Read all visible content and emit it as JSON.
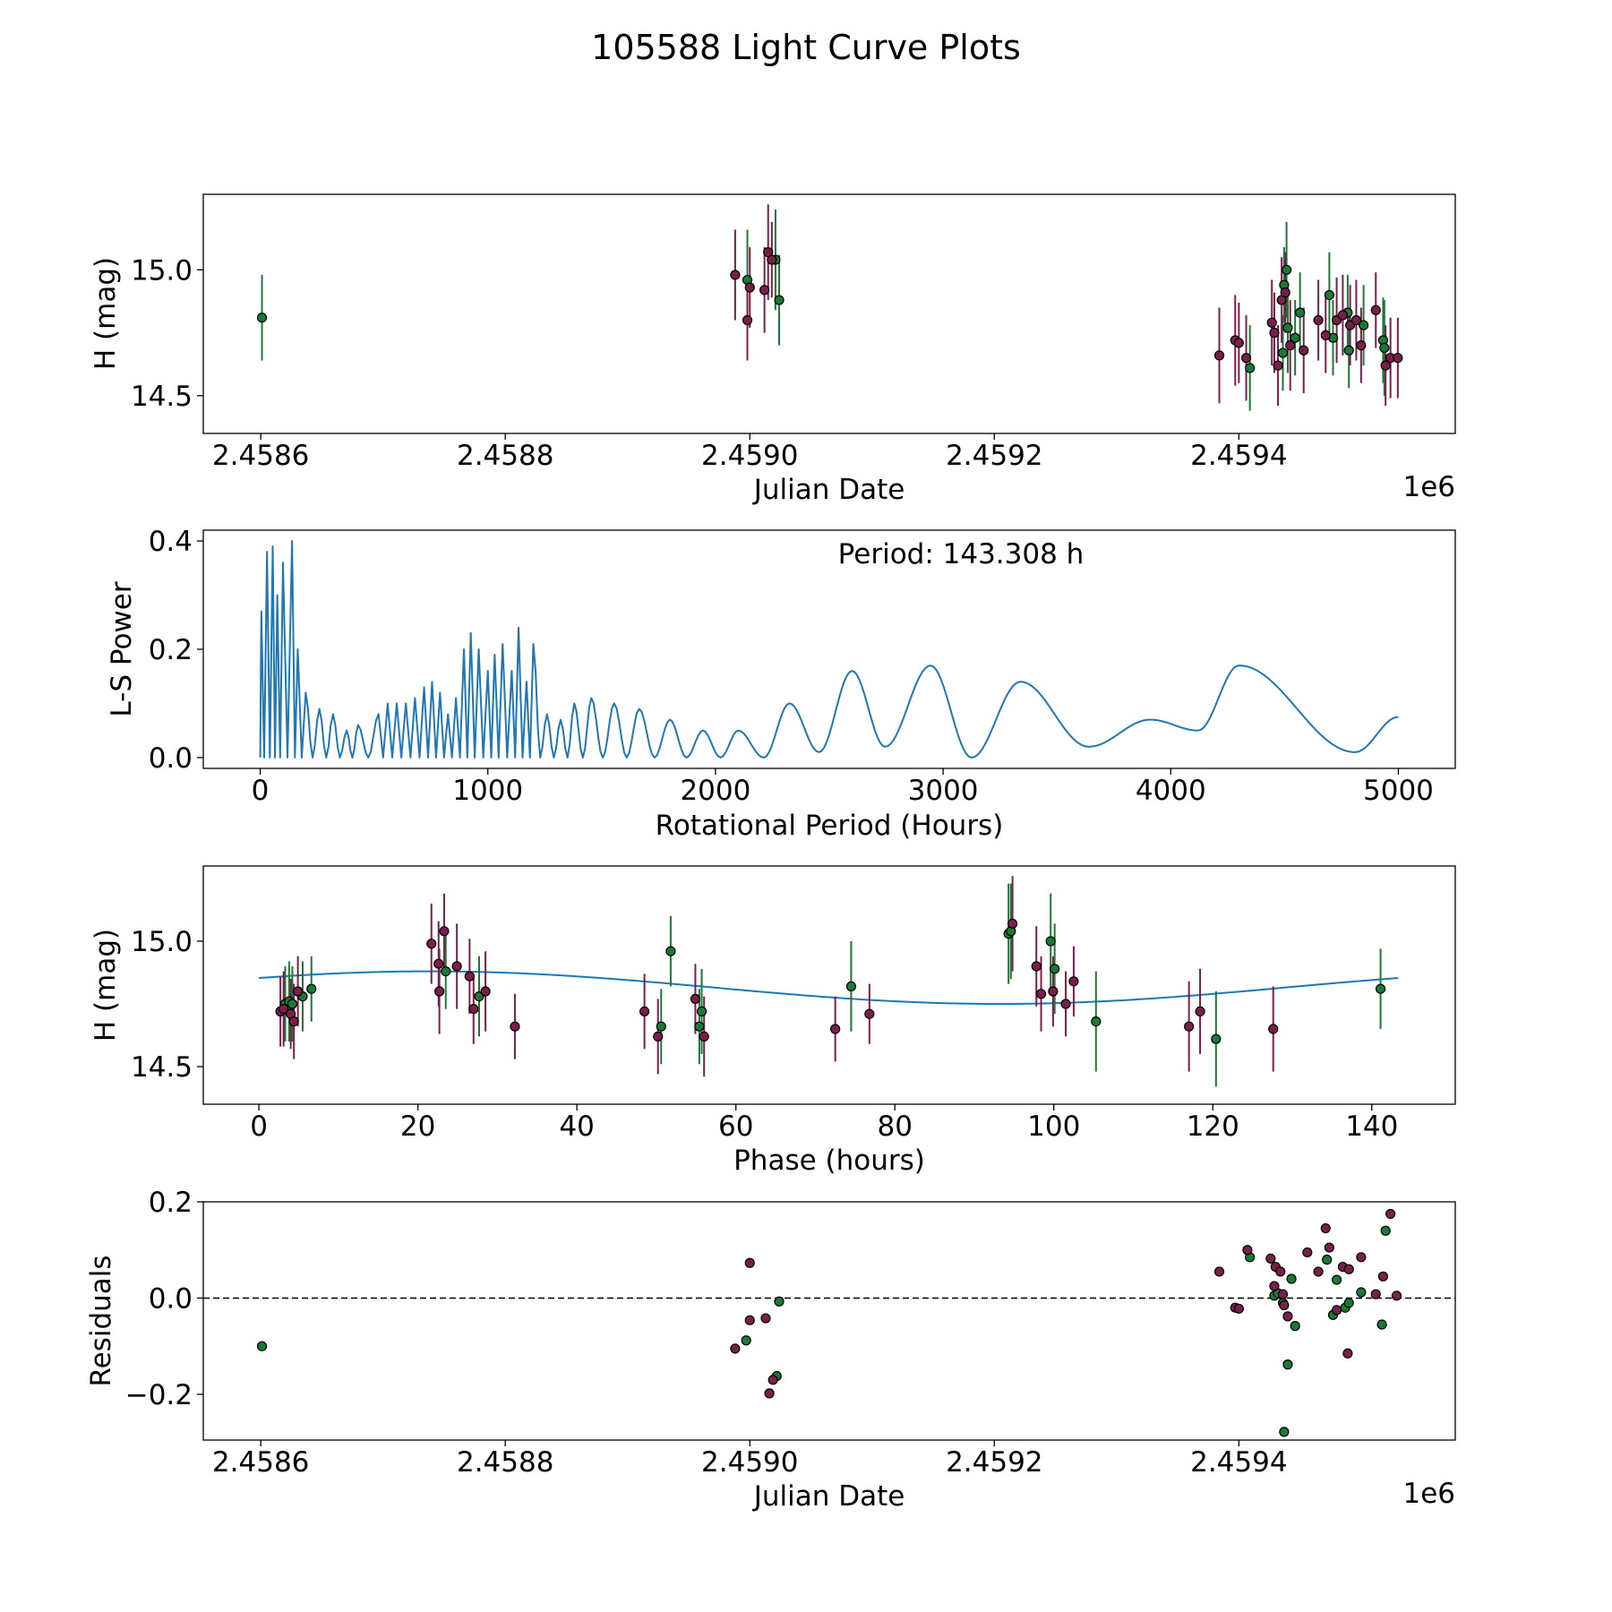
{
  "title": "105588 Light Curve Plots",
  "colors": {
    "r_filter": "#7a1f4a",
    "g_filter": "#1a7a35",
    "curve": "#1f77b4",
    "edge": "#000000"
  },
  "chart_data": [
    {
      "id": "lightcurve",
      "type": "scatter",
      "xlabel": "Julian Date",
      "ylabel": "H (mag)",
      "x_offset_label": "1e6",
      "xlim": [
        2458553,
        2459577
      ],
      "ylim": [
        14.35,
        15.3
      ],
      "x_ticks": [
        2458600,
        2458800,
        2459000,
        2459200,
        2459400
      ],
      "x_tick_labels": [
        "2.4586",
        "2.4588",
        "2.4590",
        "2.4592",
        "2.4594"
      ],
      "y_ticks": [
        14.5,
        15.0
      ],
      "y_tick_labels": [
        "14.5",
        "15.0"
      ],
      "series": [
        {
          "name": "g",
          "color": "#1a7a35",
          "points": [
            [
              2458601,
              14.81,
              0.17
            ],
            [
              2458998,
              14.96,
              0.2
            ],
            [
              2459024,
              14.88,
              0.18
            ],
            [
              2459021,
              15.04,
              0.2
            ],
            [
              2459409,
              14.61,
              0.17
            ],
            [
              2459436,
              14.67,
              0.15
            ],
            [
              2459440,
              14.77,
              0.18
            ],
            [
              2459437,
              14.94,
              0.15
            ],
            [
              2459439,
              15.0,
              0.19
            ],
            [
              2459446,
              14.73,
              0.15
            ],
            [
              2459450,
              14.83,
              0.16
            ],
            [
              2459474,
              14.9,
              0.17
            ],
            [
              2459477,
              14.73,
              0.15
            ],
            [
              2459489,
              14.83,
              0.15
            ],
            [
              2459490,
              14.68,
              0.15
            ],
            [
              2459502,
              14.78,
              0.16
            ],
            [
              2459518,
              14.72,
              0.17
            ],
            [
              2459519,
              14.69,
              0.19
            ]
          ]
        },
        {
          "name": "r",
          "color": "#7a1f4a",
          "points": [
            [
              2458988,
              14.98,
              0.18
            ],
            [
              2458998,
              14.8,
              0.16
            ],
            [
              2459000,
              14.93,
              0.16
            ],
            [
              2459012,
              14.92,
              0.17
            ],
            [
              2459015,
              15.07,
              0.19
            ],
            [
              2459018,
              15.04,
              0.15
            ],
            [
              2459384,
              14.66,
              0.19
            ],
            [
              2459397,
              14.72,
              0.18
            ],
            [
              2459400,
              14.71,
              0.16
            ],
            [
              2459406,
              14.65,
              0.17
            ],
            [
              2459427,
              14.79,
              0.17
            ],
            [
              2459429,
              14.75,
              0.16
            ],
            [
              2459432,
              14.62,
              0.16
            ],
            [
              2459435,
              14.88,
              0.17
            ],
            [
              2459438,
              14.91,
              0.16
            ],
            [
              2459442,
              14.7,
              0.18
            ],
            [
              2459453,
              14.68,
              0.17
            ],
            [
              2459465,
              14.8,
              0.16
            ],
            [
              2459471,
              14.74,
              0.15
            ],
            [
              2459480,
              14.8,
              0.17
            ],
            [
              2459485,
              14.82,
              0.16
            ],
            [
              2459491,
              14.78,
              0.16
            ],
            [
              2459496,
              14.8,
              0.16
            ],
            [
              2459500,
              14.7,
              0.15
            ],
            [
              2459512,
              14.84,
              0.15
            ],
            [
              2459520,
              14.62,
              0.16
            ],
            [
              2459524,
              14.65,
              0.16
            ],
            [
              2459530,
              14.65,
              0.16
            ]
          ]
        }
      ]
    },
    {
      "id": "periodogram",
      "type": "line",
      "xlabel": "Rotational Period (Hours)",
      "ylabel": "L-S Power",
      "annotation": "Period: 143.308 h",
      "xlim": [
        -250,
        5250
      ],
      "ylim": [
        -0.02,
        0.42
      ],
      "x_ticks": [
        0,
        1000,
        2000,
        3000,
        4000,
        5000
      ],
      "x_tick_labels": [
        "0",
        "1000",
        "2000",
        "3000",
        "4000",
        "5000"
      ],
      "y_ticks": [
        0.0,
        0.2,
        0.4
      ],
      "y_tick_labels": [
        "0.0",
        "0.2",
        "0.4"
      ],
      "peaks": [
        [
          5,
          0.27
        ],
        [
          30,
          0.38
        ],
        [
          55,
          0.39
        ],
        [
          75,
          0.3
        ],
        [
          100,
          0.36
        ],
        [
          140,
          0.4
        ],
        [
          165,
          0.2
        ],
        [
          200,
          0.12
        ],
        [
          260,
          0.09
        ],
        [
          320,
          0.08
        ],
        [
          380,
          0.05
        ],
        [
          430,
          0.06
        ],
        [
          520,
          0.08
        ],
        [
          560,
          0.1
        ],
        [
          600,
          0.1
        ],
        [
          640,
          0.1
        ],
        [
          680,
          0.11
        ],
        [
          720,
          0.13
        ],
        [
          755,
          0.14
        ],
        [
          790,
          0.12
        ],
        [
          825,
          0.08
        ],
        [
          860,
          0.11
        ],
        [
          895,
          0.2
        ],
        [
          925,
          0.23
        ],
        [
          960,
          0.2
        ],
        [
          1000,
          0.16
        ],
        [
          1030,
          0.19
        ],
        [
          1065,
          0.21
        ],
        [
          1105,
          0.16
        ],
        [
          1135,
          0.24
        ],
        [
          1170,
          0.14
        ],
        [
          1200,
          0.21
        ],
        [
          1260,
          0.08
        ],
        [
          1320,
          0.07
        ],
        [
          1380,
          0.1
        ],
        [
          1455,
          0.11
        ],
        [
          1555,
          0.1
        ],
        [
          1665,
          0.09
        ],
        [
          1800,
          0.07
        ],
        [
          1945,
          0.05
        ],
        [
          2100,
          0.05
        ],
        [
          2325,
          0.1
        ],
        [
          2600,
          0.16
        ],
        [
          2945,
          0.17
        ],
        [
          3340,
          0.14
        ],
        [
          3910,
          0.07
        ],
        [
          4300,
          0.17
        ]
      ],
      "troughs": [
        [
          2455,
          0.01
        ],
        [
          2745,
          0.02
        ],
        [
          3125,
          0.0
        ],
        [
          3640,
          0.02
        ],
        [
          4120,
          0.05
        ],
        [
          4810,
          0.01
        ]
      ],
      "end_point": [
        5000,
        0.075
      ]
    },
    {
      "id": "phase_fold",
      "type": "scatter",
      "xlabel": "Phase (hours)",
      "ylabel": "H (mag)",
      "xlim": [
        -7,
        150.5
      ],
      "ylim": [
        14.35,
        15.3
      ],
      "x_ticks": [
        0,
        20,
        40,
        60,
        80,
        100,
        120,
        140
      ],
      "x_tick_labels": [
        "0",
        "20",
        "40",
        "60",
        "80",
        "100",
        "120",
        "140"
      ],
      "y_ticks": [
        14.5,
        15.0
      ],
      "y_tick_labels": [
        "14.5",
        "15.0"
      ],
      "model": {
        "period": 143.308,
        "mean": 14.815,
        "amplitude": 0.065,
        "peak_phase": 21.5
      },
      "series": [
        {
          "name": "g",
          "color": "#1a7a35",
          "points": [
            [
              3.3,
              14.75,
              0.15
            ],
            [
              3.8,
              14.76,
              0.16
            ],
            [
              4.2,
              14.75,
              0.15
            ],
            [
              5.5,
              14.78,
              0.14
            ],
            [
              6.6,
              14.81,
              0.13
            ],
            [
              23.5,
              14.88,
              0.15
            ],
            [
              27.7,
              14.78,
              0.16
            ],
            [
              50.6,
              14.66,
              0.15
            ],
            [
              51.8,
              14.96,
              0.14
            ],
            [
              55.4,
              14.66,
              0.15
            ],
            [
              55.7,
              14.72,
              0.17
            ],
            [
              74.5,
              14.82,
              0.18
            ],
            [
              94.3,
              15.03,
              0.2
            ],
            [
              94.6,
              15.04,
              0.19
            ],
            [
              99.6,
              15.0,
              0.19
            ],
            [
              100.1,
              14.89,
              0.18
            ],
            [
              105.3,
              14.68,
              0.2
            ],
            [
              120.4,
              14.61,
              0.19
            ],
            [
              141.1,
              14.81,
              0.16
            ]
          ]
        },
        {
          "name": "r",
          "color": "#7a1f4a",
          "points": [
            [
              2.7,
              14.72,
              0.14
            ],
            [
              3.1,
              14.73,
              0.15
            ],
            [
              4.0,
              14.71,
              0.14
            ],
            [
              4.4,
              14.68,
              0.15
            ],
            [
              4.9,
              14.8,
              0.14
            ],
            [
              21.7,
              14.99,
              0.16
            ],
            [
              22.6,
              14.91,
              0.17
            ],
            [
              22.7,
              14.8,
              0.17
            ],
            [
              23.3,
              15.04,
              0.15
            ],
            [
              24.9,
              14.9,
              0.17
            ],
            [
              26.5,
              14.86,
              0.15
            ],
            [
              27.0,
              14.73,
              0.14
            ],
            [
              28.5,
              14.8,
              0.16
            ],
            [
              32.2,
              14.66,
              0.13
            ],
            [
              48.5,
              14.72,
              0.15
            ],
            [
              50.2,
              14.62,
              0.15
            ],
            [
              54.9,
              14.77,
              0.14
            ],
            [
              56.0,
              14.62,
              0.16
            ],
            [
              72.5,
              14.65,
              0.13
            ],
            [
              76.8,
              14.71,
              0.12
            ],
            [
              94.8,
              15.07,
              0.19
            ],
            [
              97.8,
              14.9,
              0.16
            ],
            [
              98.4,
              14.79,
              0.15
            ],
            [
              99.9,
              14.8,
              0.14
            ],
            [
              101.5,
              14.75,
              0.13
            ],
            [
              102.5,
              14.84,
              0.14
            ],
            [
              117.0,
              14.66,
              0.18
            ],
            [
              118.4,
              14.72,
              0.17
            ],
            [
              127.6,
              14.65,
              0.17
            ]
          ]
        }
      ]
    },
    {
      "id": "residuals",
      "type": "scatter",
      "xlabel": "Julian Date",
      "ylabel": "Residuals",
      "x_offset_label": "1e6",
      "xlim": [
        2458553,
        2459577
      ],
      "ylim": [
        -0.295,
        0.2
      ],
      "x_ticks": [
        2458600,
        2458800,
        2459000,
        2459200,
        2459400
      ],
      "x_tick_labels": [
        "2.4586",
        "2.4588",
        "2.4590",
        "2.4592",
        "2.4594"
      ],
      "y_ticks": [
        -0.2,
        0.0,
        0.2
      ],
      "y_tick_labels": [
        "−0.2",
        "0.0",
        "0.2"
      ],
      "reference_line": 0.0,
      "series": [
        {
          "name": "g",
          "color": "#1a7a35",
          "points": [
            [
              2458601,
              -0.1
            ],
            [
              2458997,
              -0.088
            ],
            [
              2459022,
              -0.162
            ],
            [
              2459024,
              -0.007
            ],
            [
              2459409,
              0.085
            ],
            [
              2459429,
              0.005
            ],
            [
              2459432,
              0.01
            ],
            [
              2459436,
              -0.01
            ],
            [
              2459437,
              -0.278
            ],
            [
              2459440,
              -0.138
            ],
            [
              2459443,
              0.04
            ],
            [
              2459446,
              -0.058
            ],
            [
              2459472,
              0.08
            ],
            [
              2459477,
              -0.035
            ],
            [
              2459480,
              0.038
            ],
            [
              2459487,
              -0.02
            ],
            [
              2459490,
              -0.01
            ],
            [
              2459500,
              0.012
            ],
            [
              2459517,
              -0.055
            ],
            [
              2459520,
              0.14
            ]
          ]
        },
        {
          "name": "r",
          "color": "#7a1f4a",
          "points": [
            [
              2458988,
              -0.105
            ],
            [
              2459000,
              0.073
            ],
            [
              2459000,
              -0.046
            ],
            [
              2459013,
              -0.042
            ],
            [
              2459016,
              -0.198
            ],
            [
              2459019,
              -0.17
            ],
            [
              2459384,
              0.055
            ],
            [
              2459397,
              -0.02
            ],
            [
              2459400,
              -0.022
            ],
            [
              2459407,
              0.1
            ],
            [
              2459426,
              0.082
            ],
            [
              2459429,
              0.025
            ],
            [
              2459430,
              0.065
            ],
            [
              2459434,
              0.055
            ],
            [
              2459436,
              0.008
            ],
            [
              2459437,
              -0.015
            ],
            [
              2459440,
              -0.038
            ],
            [
              2459456,
              0.095
            ],
            [
              2459465,
              0.055
            ],
            [
              2459471,
              0.145
            ],
            [
              2459474,
              0.105
            ],
            [
              2459480,
              -0.025
            ],
            [
              2459485,
              0.065
            ],
            [
              2459489,
              -0.115
            ],
            [
              2459490,
              0.06
            ],
            [
              2459500,
              0.085
            ],
            [
              2459512,
              0.008
            ],
            [
              2459518,
              0.045
            ],
            [
              2459524,
              0.175
            ],
            [
              2459529,
              0.005
            ]
          ]
        }
      ]
    }
  ]
}
